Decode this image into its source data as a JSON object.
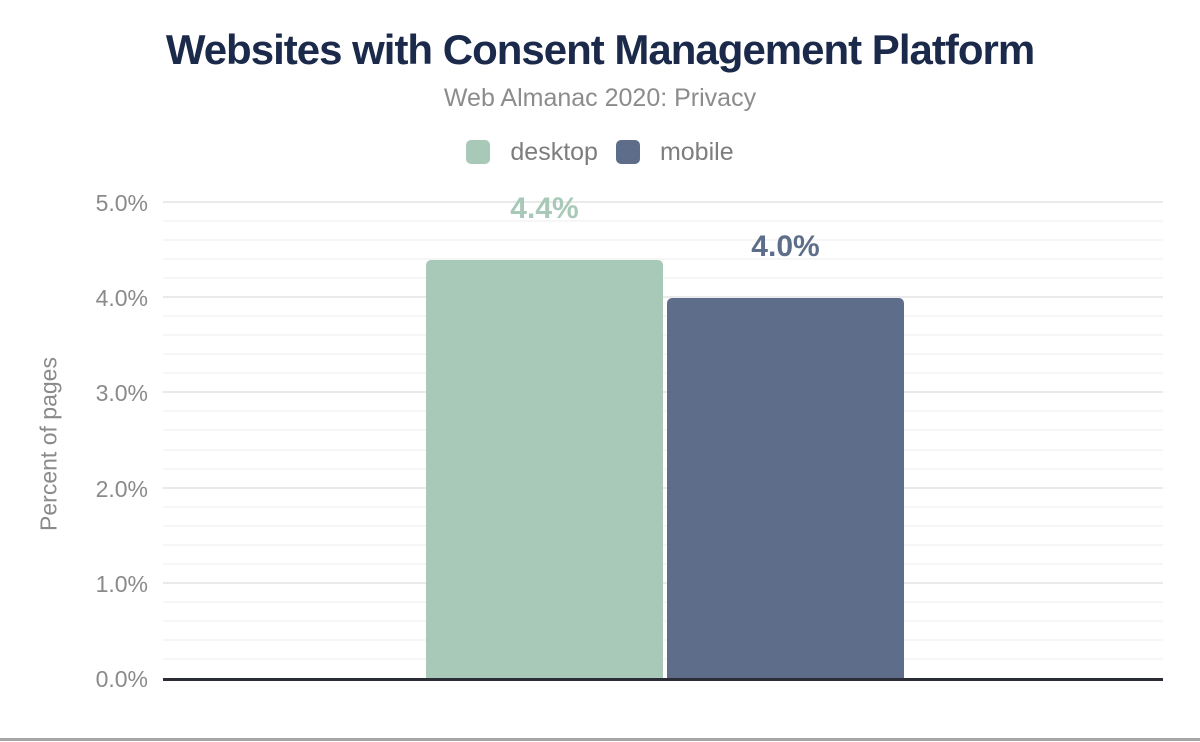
{
  "header": {
    "title": "Websites with Consent Management Platform",
    "subtitle": "Web Almanac 2020: Privacy"
  },
  "chart_data": {
    "type": "bar",
    "title": "Websites with Consent Management Platform",
    "subtitle": "Web Almanac 2020: Privacy",
    "categories": [
      "desktop",
      "mobile"
    ],
    "series": [
      {
        "name": "desktop",
        "value": 4.4,
        "data_label": "4.4%",
        "color": "#a8c8b8"
      },
      {
        "name": "mobile",
        "value": 4.0,
        "data_label": "4.0%",
        "color": "#5e6e8a"
      }
    ],
    "xlabel": "",
    "ylabel": "Percent of pages",
    "ylim": [
      0,
      5
    ],
    "ytick_values": [
      0,
      1,
      2,
      3,
      4,
      5
    ],
    "ytick_labels": [
      "0.0%",
      "1.0%",
      "2.0%",
      "3.0%",
      "4.0%",
      "5.0%"
    ],
    "minor_grid_step": 0.2,
    "grid": true,
    "legend_position": "top"
  },
  "colors": {
    "title": "#1b2a4a",
    "muted_text": "#8c8c8c",
    "desktop": "#a8c8b8",
    "mobile": "#5e6e8a",
    "axis_line": "#2a2d35",
    "grid_major": "#eaeaea",
    "grid_minor": "#f6f6f6",
    "bottom_border": "#a6a6a6"
  }
}
